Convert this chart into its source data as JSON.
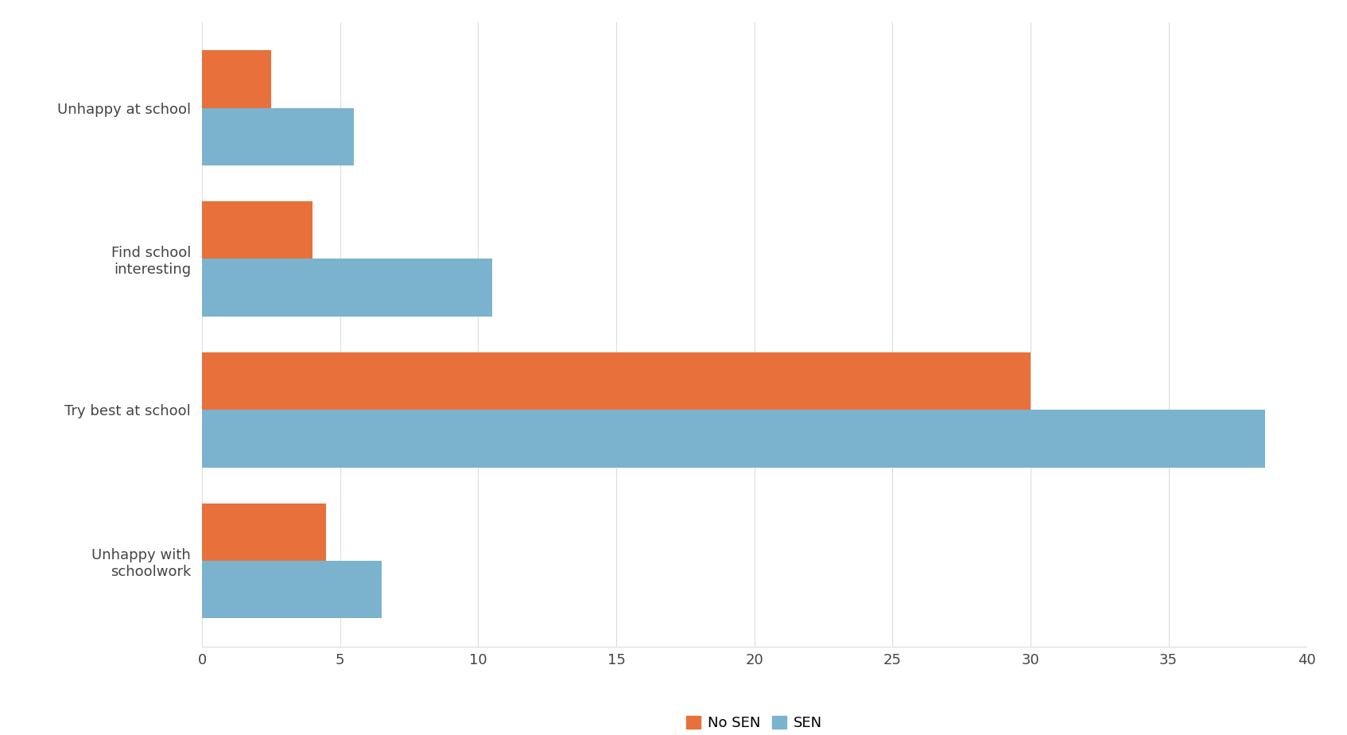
{
  "categories": [
    "Unhappy at school",
    "Find school\ninteresting",
    "Try best at school",
    "Unhappy with\nschoolwork"
  ],
  "no_sen_values": [
    2.5,
    4.0,
    30.0,
    4.5
  ],
  "sen_values": [
    5.5,
    10.5,
    38.5,
    6.5
  ],
  "no_sen_color": "#E8703A",
  "sen_color": "#7BB3CE",
  "xlim": [
    0,
    40
  ],
  "xticks": [
    0,
    5,
    10,
    15,
    20,
    25,
    30,
    35,
    40
  ],
  "bar_height": 0.38,
  "background_color": "#ffffff",
  "grid_color": "#dddddd",
  "legend_labels": [
    "No SEN",
    "SEN"
  ],
  "tick_label_color": "#444444",
  "figsize": [
    16.94,
    9.24
  ],
  "dpi": 100
}
